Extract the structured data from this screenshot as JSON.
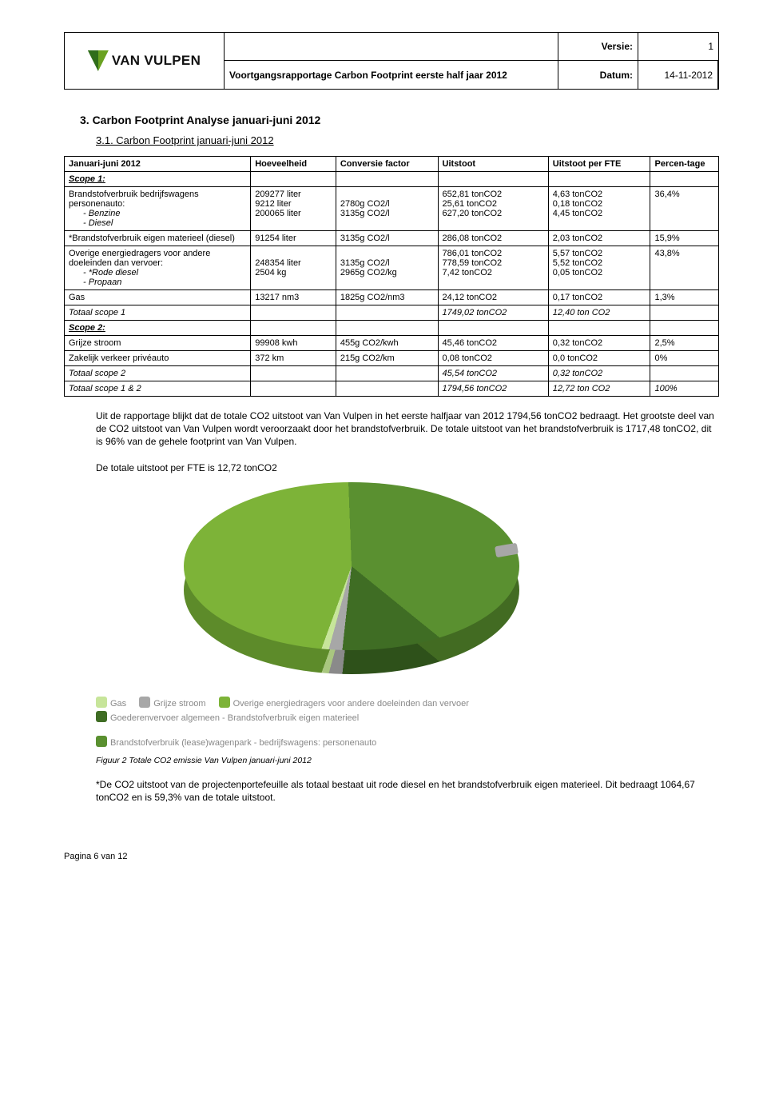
{
  "header": {
    "logo_text": "VAN VULPEN",
    "versie_label": "Versie:",
    "versie_value": "1",
    "title": "Voortgangsrapportage Carbon Footprint eerste half jaar 2012",
    "datum_label": "Datum:",
    "datum_value": "14-11-2012"
  },
  "section": "3.   Carbon Footprint Analyse januari-juni 2012",
  "subsection": "3.1.   Carbon Footprint januari-juni 2012",
  "table": {
    "columns": [
      "Januari-juni 2012",
      "Hoeveelheid",
      "Conversie factor",
      "Uitstoot",
      "Uitstoot per FTE",
      "Percen-tage"
    ],
    "scope1_label": "Scope 1:",
    "row_brandstof_label": "Brandstofverbruik bedrijfswagens personenauto:",
    "row_brandstof_items": [
      {
        "label": "Benzine",
        "h": "9212 liter",
        "c": "2780g CO2/l",
        "u": "25,61 tonCO2",
        "up": "0,18 tonCO2"
      },
      {
        "label": "Diesel",
        "h": "200065 liter",
        "c": "3135g CO2/l",
        "u": "627,20 tonCO2",
        "up": "4,45 tonCO2"
      }
    ],
    "row_brandstof_totals": {
      "h": "209277 liter",
      "u": "652,81 tonCO2",
      "up": "4,63 tonCO2",
      "p": "36,4%"
    },
    "row_eigen": {
      "label": "*Brandstofverbruik eigen materieel (diesel)",
      "h": "91254 liter",
      "c": "3135g CO2/l",
      "u": "286,08 tonCO2",
      "up": "2,03 tonCO2",
      "p": "15,9%"
    },
    "row_overige_label": "Overige energiedragers voor andere doeleinden dan vervoer:",
    "row_overige_items": [
      {
        "label": "*Rode diesel",
        "h": "248354 liter",
        "c": "3135g CO2/l",
        "u": "778,59 tonCO2",
        "up": "5,52 tonCO2"
      },
      {
        "label": "Propaan",
        "h": "2504 kg",
        "c": "2965g CO2/kg",
        "u": "7,42 tonCO2",
        "up": "0,05 tonCO2"
      }
    ],
    "row_overige_totals": {
      "u": "786,01 tonCO2",
      "up": "5,57 tonCO2",
      "p": "43,8%"
    },
    "row_gas": {
      "label": "Gas",
      "h": "13217 nm3",
      "c": "1825g CO2/nm3",
      "u": "24,12 tonCO2",
      "up": "0,17 tonCO2",
      "p": "1,3%"
    },
    "row_tot_s1": {
      "label": "Totaal scope 1",
      "u": "1749,02 tonCO2",
      "up": "12,40 ton CO2"
    },
    "scope2_label": "Scope 2:",
    "row_grijze": {
      "label": "Grijze stroom",
      "h": "99908 kwh",
      "c": "455g CO2/kwh",
      "u": "45,46 tonCO2",
      "up": "0,32 tonCO2",
      "p": "2,5%"
    },
    "row_prive": {
      "label": "Zakelijk verkeer privéauto",
      "h": "372 km",
      "c": "215g CO2/km",
      "u": "0,08 tonCO2",
      "up": "0,0 tonCO2",
      "p": "0%"
    },
    "row_tot_s2": {
      "label": "Totaal scope 2",
      "u": "45,54 tonCO2",
      "up": "0,32 tonCO2"
    },
    "row_tot_all": {
      "label": "Totaal scope 1 & 2",
      "u": "1794,56 tonCO2",
      "up": "12,72 ton CO2",
      "p": "100%"
    }
  },
  "paragraphs": {
    "p1": "Uit de rapportage blijkt dat de totale CO2 uitstoot van Van Vulpen in het eerste halfjaar van 2012 1794,56 tonCO2 bedraagt. Het grootste deel van de CO2 uitstoot van Van Vulpen wordt veroorzaakt door het brandstofverbruik. De totale uitstoot van het brandstofverbruik is 1717,48 tonCO2, dit is 96% van de gehele footprint van Van Vulpen.",
    "p2": "De totale uitstoot per FTE is 12,72 tonCO2",
    "p3": "*De CO2 uitstoot van de projectenportefeuille als totaal bestaat uit rode diesel en het brandstofverbruik eigen materieel. Dit bedraagt 1064,67 tonCO2 en is 59,3% van de totale uitstoot."
  },
  "chart": {
    "type": "pie-3d",
    "background": "#ffffff",
    "slices": [
      {
        "label": "Overige energiedragers voor andere doeleinden dan vervoer",
        "value": 43.8,
        "color": "#7db338",
        "color_side": "#5d8b2a"
      },
      {
        "label": "Brandstofverbruik (lease)wagenpark - bedrijfswagens: personenauto",
        "value": 36.4,
        "color": "#5a9030",
        "color_side": "#426b22"
      },
      {
        "label": "Goederenvervoer algemeen - Brandstofverbruik eigen materieel",
        "value": 15.9,
        "color": "#3f6d24",
        "color_side": "#2e511a"
      },
      {
        "label": "Grijze stroom",
        "value": 2.5,
        "color": "#a7a7a7",
        "color_side": "#8a8a8a"
      },
      {
        "label": "Gas",
        "value": 1.3,
        "color": "#c7e59a",
        "color_side": "#a9c77f"
      }
    ],
    "legend_items": [
      {
        "text": "Gas",
        "color": "#c7e59a"
      },
      {
        "text": "Grijze stroom",
        "color": "#a7a7a7"
      },
      {
        "text": "Overige energiedragers voor andere doeleinden dan vervoer",
        "color": "#7db338"
      },
      {
        "text": "Goederenvervoer algemeen - Brandstofverbruik eigen materieel",
        "color": "#3f6d24"
      },
      {
        "text": "Brandstofverbruik (lease)wagenpark - bedrijfswagens: personenauto",
        "color": "#5a9030"
      }
    ]
  },
  "caption": "Figuur 2 Totale CO2 emissie Van Vulpen januari-juni 2012",
  "footer": "Pagina 6 van 12"
}
